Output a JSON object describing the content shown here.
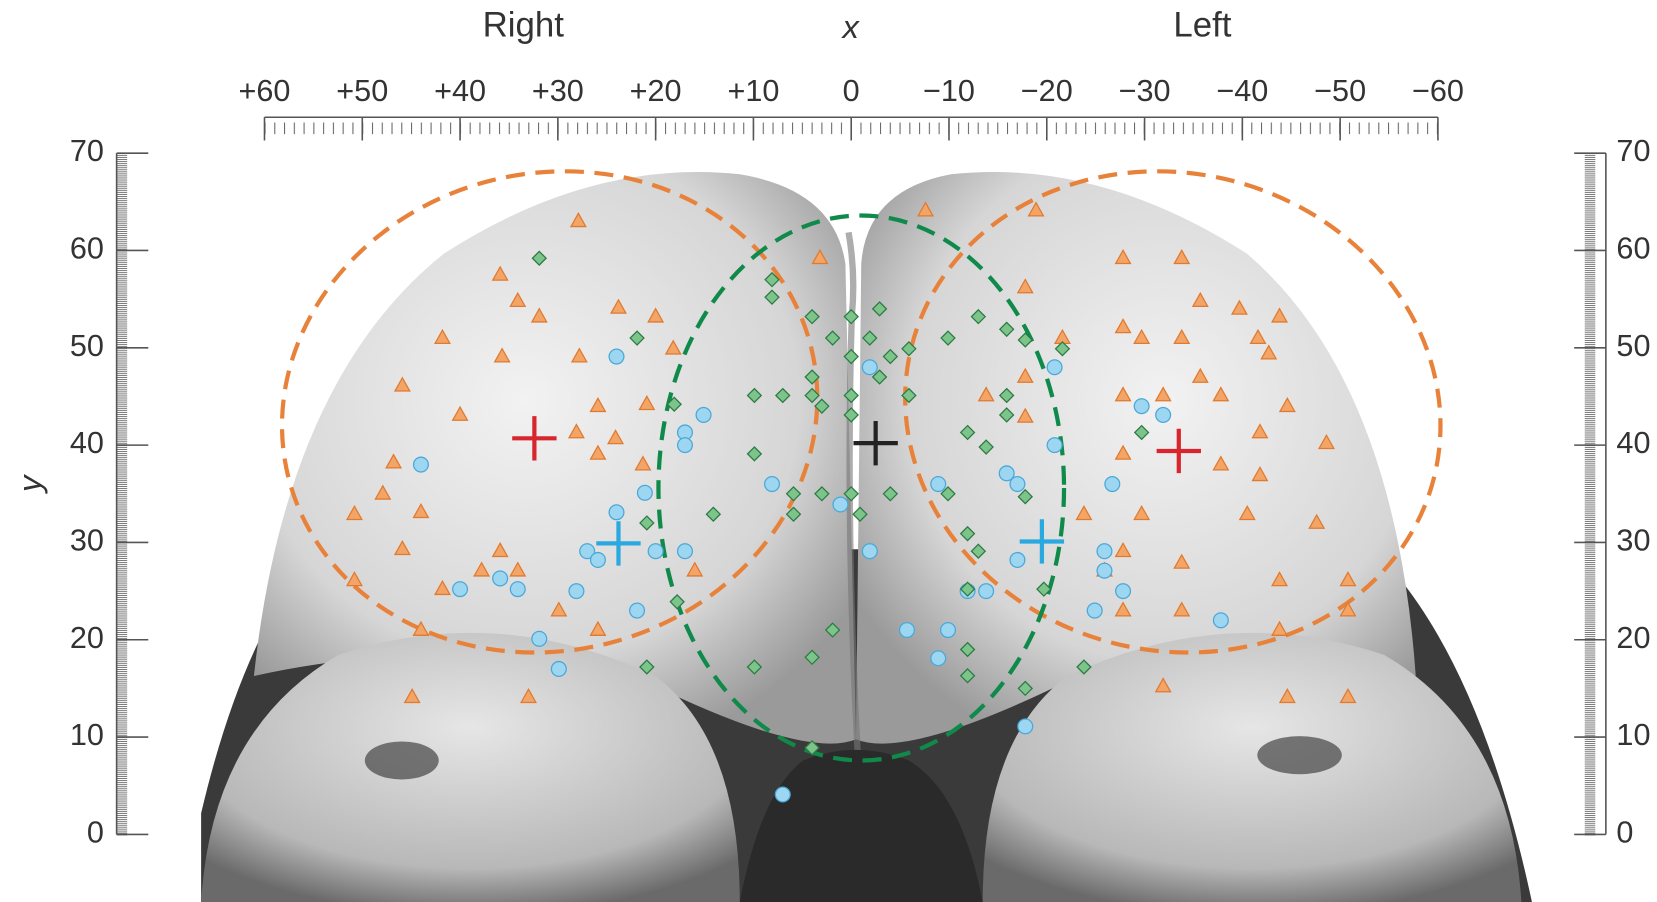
{
  "chart_data": {
    "type": "scatter",
    "annotations": [
      "Right",
      "Left"
    ],
    "xlabel": "x",
    "ylabel": "y",
    "xlim": [
      60,
      -60
    ],
    "ylim": [
      0,
      70
    ],
    "xticks": [
      {
        "value": 60,
        "label": "+60"
      },
      {
        "value": 50,
        "label": "+50"
      },
      {
        "value": 40,
        "label": "+40"
      },
      {
        "value": 30,
        "label": "+30"
      },
      {
        "value": 20,
        "label": "+20"
      },
      {
        "value": 10,
        "label": "+10"
      },
      0,
      {
        "value": -10,
        "label": "−10"
      },
      {
        "value": -20,
        "label": "−20"
      },
      {
        "value": -30,
        "label": "−30"
      },
      {
        "value": -40,
        "label": "−40"
      },
      {
        "value": -50,
        "label": "−50"
      },
      {
        "value": -60,
        "label": "−60"
      }
    ],
    "yticks": [
      0,
      10,
      20,
      30,
      40,
      50,
      60,
      70
    ],
    "series": [
      {
        "marker": "triangle",
        "color": "#f2a566",
        "x": [
          27.9,
          35.9,
          34.1,
          31.9,
          41.8,
          35.7,
          45.9,
          40.0,
          28.1,
          25.9,
          24.1,
          25.9,
          21.3,
          46.8,
          47.9,
          44.0,
          50.8,
          45.9,
          35.9,
          37.8,
          34.1,
          41.8,
          50.8,
          29.9,
          25.9,
          44.0,
          44.9,
          33.0,
          23.8,
          20.0,
          18.2,
          27.8,
          20.9,
          16.0,
          3.2,
          -7.6,
          -18.9,
          -17.8,
          -27.8,
          -33.8,
          -35.7,
          -39.7,
          -43.8,
          -27.8,
          -29.7,
          -33.8,
          -41.6,
          -42.7,
          -35.7,
          -37.8,
          -44.6,
          -27.8,
          -31.9,
          -41.8,
          -27.8,
          -37.8,
          -41.8,
          -48.6,
          -23.8,
          -29.7,
          -40.5,
          -47.6,
          -27.8,
          -33.8,
          -43.8,
          -50.8,
          -27.8,
          -33.8,
          -50.8,
          -43.8,
          -31.9,
          -44.6,
          -50.8,
          -21.6,
          -17.8,
          -13.8,
          -17.8,
          -25.9
        ],
        "values": [
          63.0,
          57.5,
          54.8,
          53.2,
          51.0,
          49.1,
          46.1,
          43.1,
          41.3,
          44.0,
          40.7,
          39.1,
          38.0,
          38.2,
          35.0,
          33.1,
          32.9,
          29.3,
          29.1,
          27.1,
          27.1,
          25.2,
          26.1,
          23.0,
          21.0,
          21.0,
          14.1,
          14.1,
          54.1,
          53.2,
          49.9,
          49.1,
          44.2,
          27.1,
          59.2,
          64.1,
          64.1,
          56.2,
          59.2,
          59.2,
          54.8,
          54.0,
          53.2,
          52.1,
          51.0,
          51.0,
          51.0,
          49.4,
          47.0,
          45.1,
          44.0,
          45.1,
          45.1,
          41.3,
          39.1,
          38.0,
          36.9,
          40.2,
          32.9,
          32.9,
          32.9,
          32.0,
          29.1,
          27.9,
          26.1,
          26.1,
          23.0,
          23.0,
          23.0,
          21.0,
          15.2,
          14.1,
          14.1,
          51.0,
          47.0,
          45.1,
          42.9,
          27.1
        ]
      },
      {
        "marker": "circle",
        "color": "#9dd6f0",
        "x": [
          24.0,
          44.0,
          21.1,
          24.0,
          27.0,
          25.9,
          20.0,
          17.0,
          28.1,
          40.0,
          34.1,
          35.9,
          21.9,
          31.9,
          29.9,
          15.1,
          17.0,
          17.0,
          8.1,
          1.1,
          -1.9,
          -1.9,
          -8.9,
          -5.7,
          -9.9,
          -8.9,
          -15.9,
          -17.0,
          -20.8,
          -20.8,
          -26.7,
          -25.9,
          -25.9,
          -27.8,
          -24.9,
          -29.7,
          -31.9,
          -17.0,
          -13.8,
          -11.9,
          -37.8,
          -17.8,
          7.0
        ],
        "values": [
          49.1,
          38.0,
          35.1,
          33.1,
          29.1,
          28.2,
          29.1,
          29.1,
          25.0,
          25.2,
          25.2,
          26.3,
          23.0,
          20.1,
          17.0,
          43.1,
          41.3,
          40.0,
          36.0,
          33.9,
          29.1,
          48.0,
          36.0,
          21.0,
          21.0,
          18.1,
          37.1,
          36.0,
          40.0,
          48.0,
          36.0,
          29.1,
          27.1,
          25.0,
          23.0,
          44.0,
          43.1,
          28.2,
          25.0,
          25.0,
          22.0,
          11.1,
          4.1
        ]
      },
      {
        "marker": "diamond",
        "color": "#7cc48a",
        "x": [
          31.9,
          21.9,
          18.1,
          20.9,
          17.8,
          20.9,
          8.1,
          8.1,
          4.0,
          0,
          -2.9,
          1.9,
          -1.9,
          -5.9,
          -9.9,
          -13.0,
          -15.9,
          0,
          -4.0,
          4.0,
          4.0,
          0,
          -2.9,
          -5.9,
          9.9,
          7.0,
          3.0,
          0,
          9.9,
          5.9,
          5.9,
          3.0,
          0,
          -4.0,
          -0.9,
          14.1,
          4.0,
          1.9,
          9.9,
          4.0,
          -9.9,
          -11.9,
          -15.9,
          -15.9,
          -13.8,
          -11.9,
          -13.0,
          -11.9,
          -11.9,
          -11.9,
          -17.8,
          -23.8,
          -17.8,
          -19.7,
          -17.8,
          -21.6,
          -29.7
        ],
        "values": [
          59.2,
          51.0,
          44.2,
          32.0,
          23.9,
          17.2,
          57.0,
          55.2,
          53.2,
          53.2,
          54.0,
          51.0,
          51.0,
          49.9,
          51.0,
          53.2,
          51.9,
          49.1,
          49.1,
          47.0,
          45.1,
          45.1,
          47.0,
          45.1,
          45.1,
          45.1,
          44.0,
          43.1,
          39.1,
          35.0,
          32.9,
          35.0,
          35.0,
          35.0,
          32.9,
          32.9,
          18.2,
          21.0,
          17.2,
          8.9,
          35.0,
          41.3,
          45.1,
          43.1,
          39.8,
          30.9,
          29.1,
          25.2,
          19.0,
          16.3,
          15.0,
          17.2,
          34.7,
          25.2,
          50.8,
          49.9,
          41.3
        ]
      },
      {
        "marker": "plus",
        "color": "#d7262e",
        "x": [
          32.4,
          -33.5
        ],
        "values": [
          40.7,
          39.4
        ]
      },
      {
        "marker": "plus",
        "color": "#2aa8e0",
        "x": [
          23.8,
          -19.5
        ],
        "values": [
          29.9,
          30.1
        ]
      },
      {
        "marker": "plus",
        "color": "#222222",
        "x": [
          -2.5
        ],
        "values": [
          40.2
        ]
      }
    ]
  }
}
